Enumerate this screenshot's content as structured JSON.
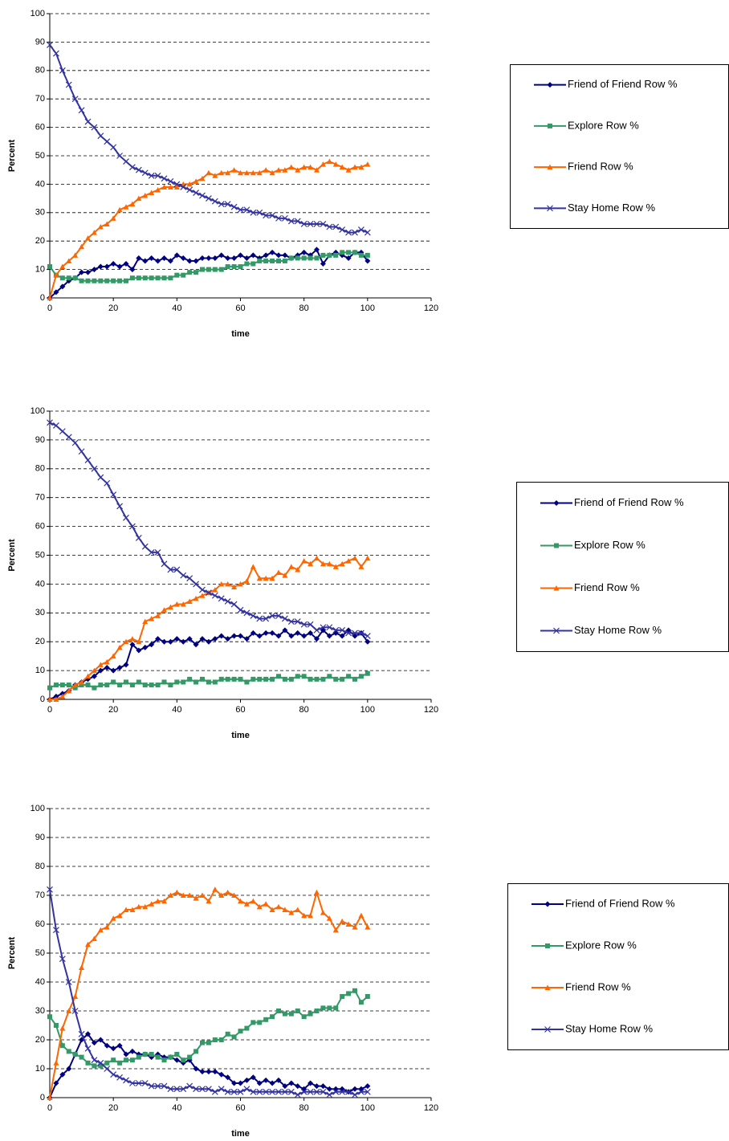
{
  "chart_data": [
    {
      "type": "line",
      "xlabel": "time",
      "ylabel": "Percent",
      "legend": "right",
      "grid": true,
      "xlim": [
        0,
        120
      ],
      "xticks": [
        0,
        20,
        40,
        60,
        80,
        100,
        120
      ],
      "ylim": [
        0,
        100
      ],
      "yticks": [
        0,
        10,
        20,
        30,
        40,
        50,
        60,
        70,
        80,
        90,
        100
      ],
      "x": [
        0,
        2,
        4,
        6,
        8,
        10,
        12,
        14,
        16,
        18,
        20,
        22,
        24,
        26,
        28,
        30,
        32,
        34,
        36,
        38,
        40,
        42,
        44,
        46,
        48,
        50,
        52,
        54,
        56,
        58,
        60,
        62,
        64,
        66,
        68,
        70,
        72,
        74,
        76,
        78,
        80,
        82,
        84,
        86,
        88,
        90,
        92,
        94,
        96,
        98,
        100
      ],
      "series": [
        {
          "name": "Friend of Friend Row %",
          "color": "#000080",
          "marker": "diamond",
          "values": [
            0,
            2,
            4,
            6,
            7,
            9,
            9,
            10,
            11,
            11,
            12,
            11,
            12,
            10,
            14,
            13,
            14,
            13,
            14,
            13,
            15,
            14,
            13,
            13,
            14,
            14,
            14,
            15,
            14,
            14,
            15,
            14,
            15,
            14,
            15,
            16,
            15,
            15,
            14,
            15,
            16,
            15,
            17,
            12,
            15,
            16,
            15,
            14,
            16,
            16,
            13
          ]
        },
        {
          "name": "Explore Row %",
          "color": "#339966",
          "marker": "square",
          "values": [
            11,
            8,
            7,
            7,
            7,
            6,
            6,
            6,
            6,
            6,
            6,
            6,
            6,
            7,
            7,
            7,
            7,
            7,
            7,
            7,
            8,
            8,
            9,
            9,
            10,
            10,
            10,
            10,
            11,
            11,
            11,
            12,
            12,
            13,
            13,
            13,
            13,
            13,
            14,
            14,
            14,
            14,
            14,
            15,
            15,
            15,
            16,
            16,
            16,
            15,
            15
          ]
        },
        {
          "name": "Friend Row %",
          "color": "#ff6600",
          "marker": "triangle",
          "values": [
            0,
            8,
            11,
            13,
            15,
            18,
            21,
            23,
            25,
            26,
            28,
            31,
            32,
            33,
            35,
            36,
            37,
            38,
            39,
            39,
            39,
            40,
            40,
            41,
            42,
            44,
            43,
            44,
            44,
            45,
            44,
            44,
            44,
            44,
            45,
            44,
            45,
            45,
            46,
            45,
            46,
            46,
            45,
            47,
            48,
            47,
            46,
            45,
            46,
            46,
            47
          ]
        },
        {
          "name": "Stay Home Row %",
          "color": "#3333a0",
          "marker": "x",
          "values": [
            89,
            86,
            80,
            75,
            70,
            66,
            62,
            60,
            57,
            55,
            53,
            50,
            48,
            46,
            45,
            44,
            43,
            43,
            42,
            41,
            40,
            39,
            38,
            37,
            36,
            35,
            34,
            33,
            33,
            32,
            31,
            31,
            30,
            30,
            29,
            29,
            28,
            28,
            27,
            27,
            26,
            26,
            26,
            26,
            25,
            25,
            24,
            23,
            23,
            24,
            23
          ]
        }
      ]
    },
    {
      "type": "line",
      "xlabel": "time",
      "ylabel": "Percent",
      "legend": "right",
      "grid": true,
      "xlim": [
        0,
        120
      ],
      "xticks": [
        0,
        20,
        40,
        60,
        80,
        100,
        120
      ],
      "ylim": [
        0,
        100
      ],
      "yticks": [
        0,
        10,
        20,
        30,
        40,
        50,
        60,
        70,
        80,
        90,
        100
      ],
      "x": [
        0,
        2,
        4,
        6,
        8,
        10,
        12,
        14,
        16,
        18,
        20,
        22,
        24,
        26,
        28,
        30,
        32,
        34,
        36,
        38,
        40,
        42,
        44,
        46,
        48,
        50,
        52,
        54,
        56,
        58,
        60,
        62,
        64,
        66,
        68,
        70,
        72,
        74,
        76,
        78,
        80,
        82,
        84,
        86,
        88,
        90,
        92,
        94,
        96,
        98,
        100
      ],
      "series": [
        {
          "name": "Friend of Friend Row %",
          "color": "#000080",
          "marker": "diamond",
          "values": [
            0,
            1,
            2,
            3,
            5,
            6,
            7,
            8,
            10,
            11,
            10,
            11,
            12,
            19,
            17,
            18,
            19,
            21,
            20,
            20,
            21,
            20,
            21,
            19,
            21,
            20,
            21,
            22,
            21,
            22,
            22,
            21,
            23,
            22,
            23,
            23,
            22,
            24,
            22,
            23,
            22,
            23,
            21,
            24,
            22,
            23,
            22,
            24,
            22,
            23,
            20
          ]
        },
        {
          "name": "Explore Row %",
          "color": "#339966",
          "marker": "square",
          "values": [
            4,
            5,
            5,
            5,
            4,
            5,
            5,
            4,
            5,
            5,
            6,
            5,
            6,
            5,
            6,
            5,
            5,
            5,
            6,
            5,
            6,
            6,
            7,
            6,
            7,
            6,
            6,
            7,
            7,
            7,
            7,
            6,
            7,
            7,
            7,
            7,
            8,
            7,
            7,
            8,
            8,
            7,
            7,
            7,
            8,
            7,
            7,
            8,
            7,
            8,
            9
          ]
        },
        {
          "name": "Friend Row %",
          "color": "#ff6600",
          "marker": "triangle",
          "values": [
            0,
            0,
            1,
            3,
            5,
            6,
            8,
            10,
            12,
            13,
            15,
            18,
            20,
            21,
            20,
            27,
            28,
            29,
            31,
            32,
            33,
            33,
            34,
            35,
            36,
            37,
            38,
            40,
            40,
            39,
            40,
            41,
            46,
            42,
            42,
            42,
            44,
            43,
            46,
            45,
            48,
            47,
            49,
            47,
            47,
            46,
            47,
            48,
            49,
            46,
            49
          ]
        },
        {
          "name": "Stay Home Row %",
          "color": "#3333a0",
          "marker": "x",
          "values": [
            96,
            95,
            93,
            91,
            89,
            86,
            83,
            80,
            77,
            75,
            71,
            67,
            63,
            60,
            56,
            53,
            51,
            51,
            47,
            45,
            45,
            43,
            42,
            40,
            38,
            37,
            36,
            35,
            34,
            33,
            31,
            30,
            29,
            28,
            28,
            29,
            29,
            28,
            27,
            27,
            26,
            26,
            24,
            25,
            25,
            24,
            24,
            23,
            23,
            23,
            22
          ]
        }
      ]
    },
    {
      "type": "line",
      "xlabel": "time",
      "ylabel": "Percent",
      "legend": "right",
      "grid": true,
      "xlim": [
        0,
        120
      ],
      "xticks": [
        0,
        20,
        40,
        60,
        80,
        100,
        120
      ],
      "ylim": [
        0,
        100
      ],
      "yticks": [
        0,
        10,
        20,
        30,
        40,
        50,
        60,
        70,
        80,
        90,
        100
      ],
      "x": [
        0,
        2,
        4,
        6,
        8,
        10,
        12,
        14,
        16,
        18,
        20,
        22,
        24,
        26,
        28,
        30,
        32,
        34,
        36,
        38,
        40,
        42,
        44,
        46,
        48,
        50,
        52,
        54,
        56,
        58,
        60,
        62,
        64,
        66,
        68,
        70,
        72,
        74,
        76,
        78,
        80,
        82,
        84,
        86,
        88,
        90,
        92,
        94,
        96,
        98,
        100
      ],
      "series": [
        {
          "name": "Friend of Friend Row %",
          "color": "#000080",
          "marker": "diamond",
          "values": [
            0,
            5,
            8,
            10,
            15,
            20,
            22,
            19,
            20,
            18,
            17,
            18,
            15,
            16,
            15,
            15,
            14,
            15,
            14,
            14,
            13,
            12,
            13,
            10,
            9,
            9,
            9,
            8,
            7,
            5,
            5,
            6,
            7,
            5,
            6,
            5,
            6,
            4,
            5,
            4,
            3,
            5,
            4,
            4,
            3,
            3,
            3,
            2,
            3,
            3,
            4
          ]
        },
        {
          "name": "Explore Row %",
          "color": "#339966",
          "marker": "square",
          "values": [
            28,
            25,
            18,
            16,
            15,
            14,
            12,
            11,
            11,
            12,
            13,
            12,
            13,
            13,
            14,
            15,
            15,
            14,
            13,
            14,
            15,
            13,
            14,
            16,
            19,
            19,
            20,
            20,
            22,
            21,
            23,
            24,
            26,
            26,
            27,
            28,
            30,
            29,
            29,
            30,
            28,
            29,
            30,
            31,
            31,
            31,
            35,
            36,
            37,
            33,
            35
          ]
        },
        {
          "name": "Friend Row %",
          "color": "#ff6600",
          "marker": "triangle",
          "values": [
            0,
            12,
            24,
            30,
            35,
            45,
            53,
            55,
            58,
            59,
            62,
            63,
            65,
            65,
            66,
            66,
            67,
            68,
            68,
            70,
            71,
            70,
            70,
            69,
            70,
            68,
            72,
            70,
            71,
            70,
            68,
            67,
            68,
            66,
            67,
            65,
            66,
            65,
            64,
            65,
            63,
            63,
            71,
            64,
            62,
            58,
            61,
            60,
            59,
            63,
            59
          ]
        },
        {
          "name": "Stay Home Row %",
          "color": "#3333a0",
          "marker": "x",
          "values": [
            72,
            58,
            48,
            40,
            30,
            22,
            17,
            13,
            12,
            10,
            8,
            7,
            6,
            5,
            5,
            5,
            4,
            4,
            4,
            3,
            3,
            3,
            4,
            3,
            3,
            3,
            2,
            3,
            2,
            2,
            2,
            3,
            2,
            2,
            2,
            2,
            2,
            2,
            2,
            1,
            2,
            2,
            2,
            2,
            1,
            2,
            2,
            2,
            1,
            2,
            2
          ]
        }
      ]
    }
  ]
}
